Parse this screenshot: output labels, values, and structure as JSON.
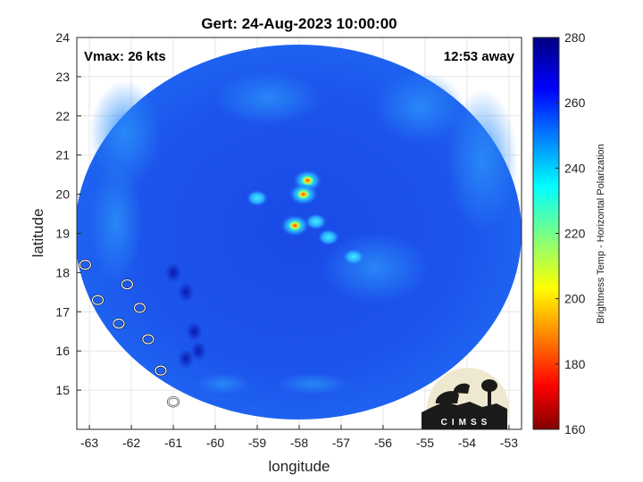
{
  "title": "Gert: 24-Aug-2023 10:00:00",
  "annotations": {
    "vmax": "Vmax: 26 kts",
    "time_away": "12:53 away"
  },
  "logo": {
    "text": "CIMSS"
  },
  "colors": {
    "ocean_background": "#1a4ee6",
    "coastline": "#ffffff",
    "convection_core": "#ffe020"
  },
  "map": {
    "xlabel": "longitude",
    "ylabel": "latitude",
    "xlim": [
      -63.3,
      -52.7
    ],
    "ylim": [
      14.0,
      24.0
    ],
    "xticks": [
      -63,
      -62,
      -61,
      -60,
      -59,
      -58,
      -57,
      -56,
      -55,
      -54,
      -53
    ],
    "yticks": [
      15,
      16,
      17,
      18,
      19,
      20,
      21,
      22,
      23,
      24
    ],
    "grid": true,
    "swath_center": {
      "lon": -58.0,
      "lat": 19.0
    }
  },
  "colorbar": {
    "label": "Brightness Temp - Horizontal Polarization",
    "min": 160,
    "max": 280,
    "ticks": [
      160,
      180,
      200,
      220,
      240,
      260,
      280
    ],
    "colormap": "jet"
  },
  "features": {
    "cold_cores": [
      {
        "lon": -57.8,
        "lat": 20.35,
        "bt": 195
      },
      {
        "lon": -57.9,
        "lat": 20.0,
        "bt": 205
      },
      {
        "lon": -58.1,
        "lat": 19.2,
        "bt": 190
      },
      {
        "lon": -57.6,
        "lat": 19.3,
        "bt": 240
      },
      {
        "lon": -57.3,
        "lat": 18.9,
        "bt": 240
      },
      {
        "lon": -56.7,
        "lat": 18.4,
        "bt": 242
      },
      {
        "lon": -59.0,
        "lat": 19.9,
        "bt": 245
      }
    ],
    "warm_pixels": [
      {
        "lon": -61.0,
        "lat": 18.0,
        "bt": 275
      },
      {
        "lon": -60.7,
        "lat": 17.5,
        "bt": 275
      },
      {
        "lon": -60.5,
        "lat": 16.5,
        "bt": 276
      },
      {
        "lon": -60.4,
        "lat": 16.0,
        "bt": 275
      },
      {
        "lon": -60.7,
        "lat": 15.8,
        "bt": 272
      }
    ],
    "islands": [
      {
        "lon": -63.1,
        "lat": 18.2
      },
      {
        "lon": -62.8,
        "lat": 17.3
      },
      {
        "lon": -62.1,
        "lat": 17.7
      },
      {
        "lon": -61.8,
        "lat": 17.1
      },
      {
        "lon": -62.3,
        "lat": 16.7
      },
      {
        "lon": -61.6,
        "lat": 16.3
      },
      {
        "lon": -61.3,
        "lat": 15.5
      },
      {
        "lon": -61.0,
        "lat": 14.7
      }
    ]
  }
}
